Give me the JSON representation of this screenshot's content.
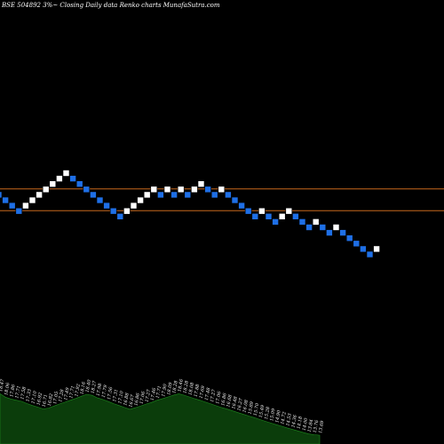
{
  "title": "BSE 504892  3%~  Closing Daily data  Renko  charts MunafaSutra.com",
  "colors": {
    "background": "#000000",
    "up_brick": "#ffffff",
    "down_brick": "#1e6fe6",
    "brick_border": "#000000",
    "reference_line": "#c8691c",
    "volume_fill": "#0b3d0b",
    "volume_edge": "#1e8a1e"
  },
  "chart_data": {
    "type": "renko",
    "bricks": [
      {
        "dir": "down",
        "level": 20
      },
      {
        "dir": "down",
        "level": 19
      },
      {
        "dir": "down",
        "level": 18
      },
      {
        "dir": "down",
        "level": 17
      },
      {
        "dir": "up",
        "level": 18
      },
      {
        "dir": "up",
        "level": 19
      },
      {
        "dir": "up",
        "level": 20
      },
      {
        "dir": "up",
        "level": 21
      },
      {
        "dir": "up",
        "level": 22
      },
      {
        "dir": "up",
        "level": 23
      },
      {
        "dir": "up",
        "level": 24
      },
      {
        "dir": "down",
        "level": 23
      },
      {
        "dir": "down",
        "level": 22
      },
      {
        "dir": "down",
        "level": 21
      },
      {
        "dir": "down",
        "level": 20
      },
      {
        "dir": "down",
        "level": 19
      },
      {
        "dir": "down",
        "level": 18
      },
      {
        "dir": "down",
        "level": 17
      },
      {
        "dir": "down",
        "level": 16
      },
      {
        "dir": "up",
        "level": 17
      },
      {
        "dir": "up",
        "level": 18
      },
      {
        "dir": "up",
        "level": 19
      },
      {
        "dir": "up",
        "level": 20
      },
      {
        "dir": "up",
        "level": 21
      },
      {
        "dir": "down",
        "level": 20
      },
      {
        "dir": "up",
        "level": 21
      },
      {
        "dir": "down",
        "level": 20
      },
      {
        "dir": "up",
        "level": 21
      },
      {
        "dir": "down",
        "level": 20
      },
      {
        "dir": "up",
        "level": 21
      },
      {
        "dir": "up",
        "level": 22
      },
      {
        "dir": "down",
        "level": 21
      },
      {
        "dir": "down",
        "level": 20
      },
      {
        "dir": "up",
        "level": 21
      },
      {
        "dir": "down",
        "level": 20
      },
      {
        "dir": "down",
        "level": 19
      },
      {
        "dir": "down",
        "level": 18
      },
      {
        "dir": "down",
        "level": 17
      },
      {
        "dir": "down",
        "level": 16
      },
      {
        "dir": "up",
        "level": 17
      },
      {
        "dir": "down",
        "level": 16
      },
      {
        "dir": "down",
        "level": 15
      },
      {
        "dir": "up",
        "level": 16
      },
      {
        "dir": "up",
        "level": 17
      },
      {
        "dir": "down",
        "level": 16
      },
      {
        "dir": "down",
        "level": 15
      },
      {
        "dir": "down",
        "level": 14
      },
      {
        "dir": "up",
        "level": 15
      },
      {
        "dir": "down",
        "level": 14
      },
      {
        "dir": "down",
        "level": 13
      },
      {
        "dir": "up",
        "level": 14
      },
      {
        "dir": "down",
        "level": 13
      },
      {
        "dir": "down",
        "level": 12
      },
      {
        "dir": "down",
        "level": 11
      },
      {
        "dir": "down",
        "level": 10
      },
      {
        "dir": "down",
        "level": 9
      },
      {
        "dir": "up",
        "level": 10
      }
    ],
    "reference_lines": [
      21,
      17
    ],
    "volume_labels": [
      "18.47",
      "18.06",
      "17.86",
      "17.71",
      "17.58",
      "17.33",
      "17.10",
      "16.92",
      "16.71",
      "16.82",
      "17.05",
      "17.28",
      "17.49",
      "17.71",
      "17.92",
      "18.16",
      "18.40",
      "18.27",
      "17.98",
      "17.79",
      "17.56",
      "17.31",
      "17.10",
      "16.88",
      "16.67",
      "16.86",
      "17.06",
      "17.27",
      "17.46",
      "17.71",
      "17.90",
      "18.09",
      "18.28",
      "18.46",
      "18.28",
      "18.08",
      "17.88",
      "17.69",
      "17.48",
      "17.27",
      "17.06",
      "16.86",
      "16.68",
      "16.48",
      "16.27",
      "16.08",
      "15.89",
      "15.70",
      "15.49",
      "15.28",
      "15.09",
      "14.90",
      "14.72",
      "14.53",
      "14.36",
      "14.18",
      "14.00",
      "13.84",
      "13.76",
      "13.69"
    ]
  }
}
